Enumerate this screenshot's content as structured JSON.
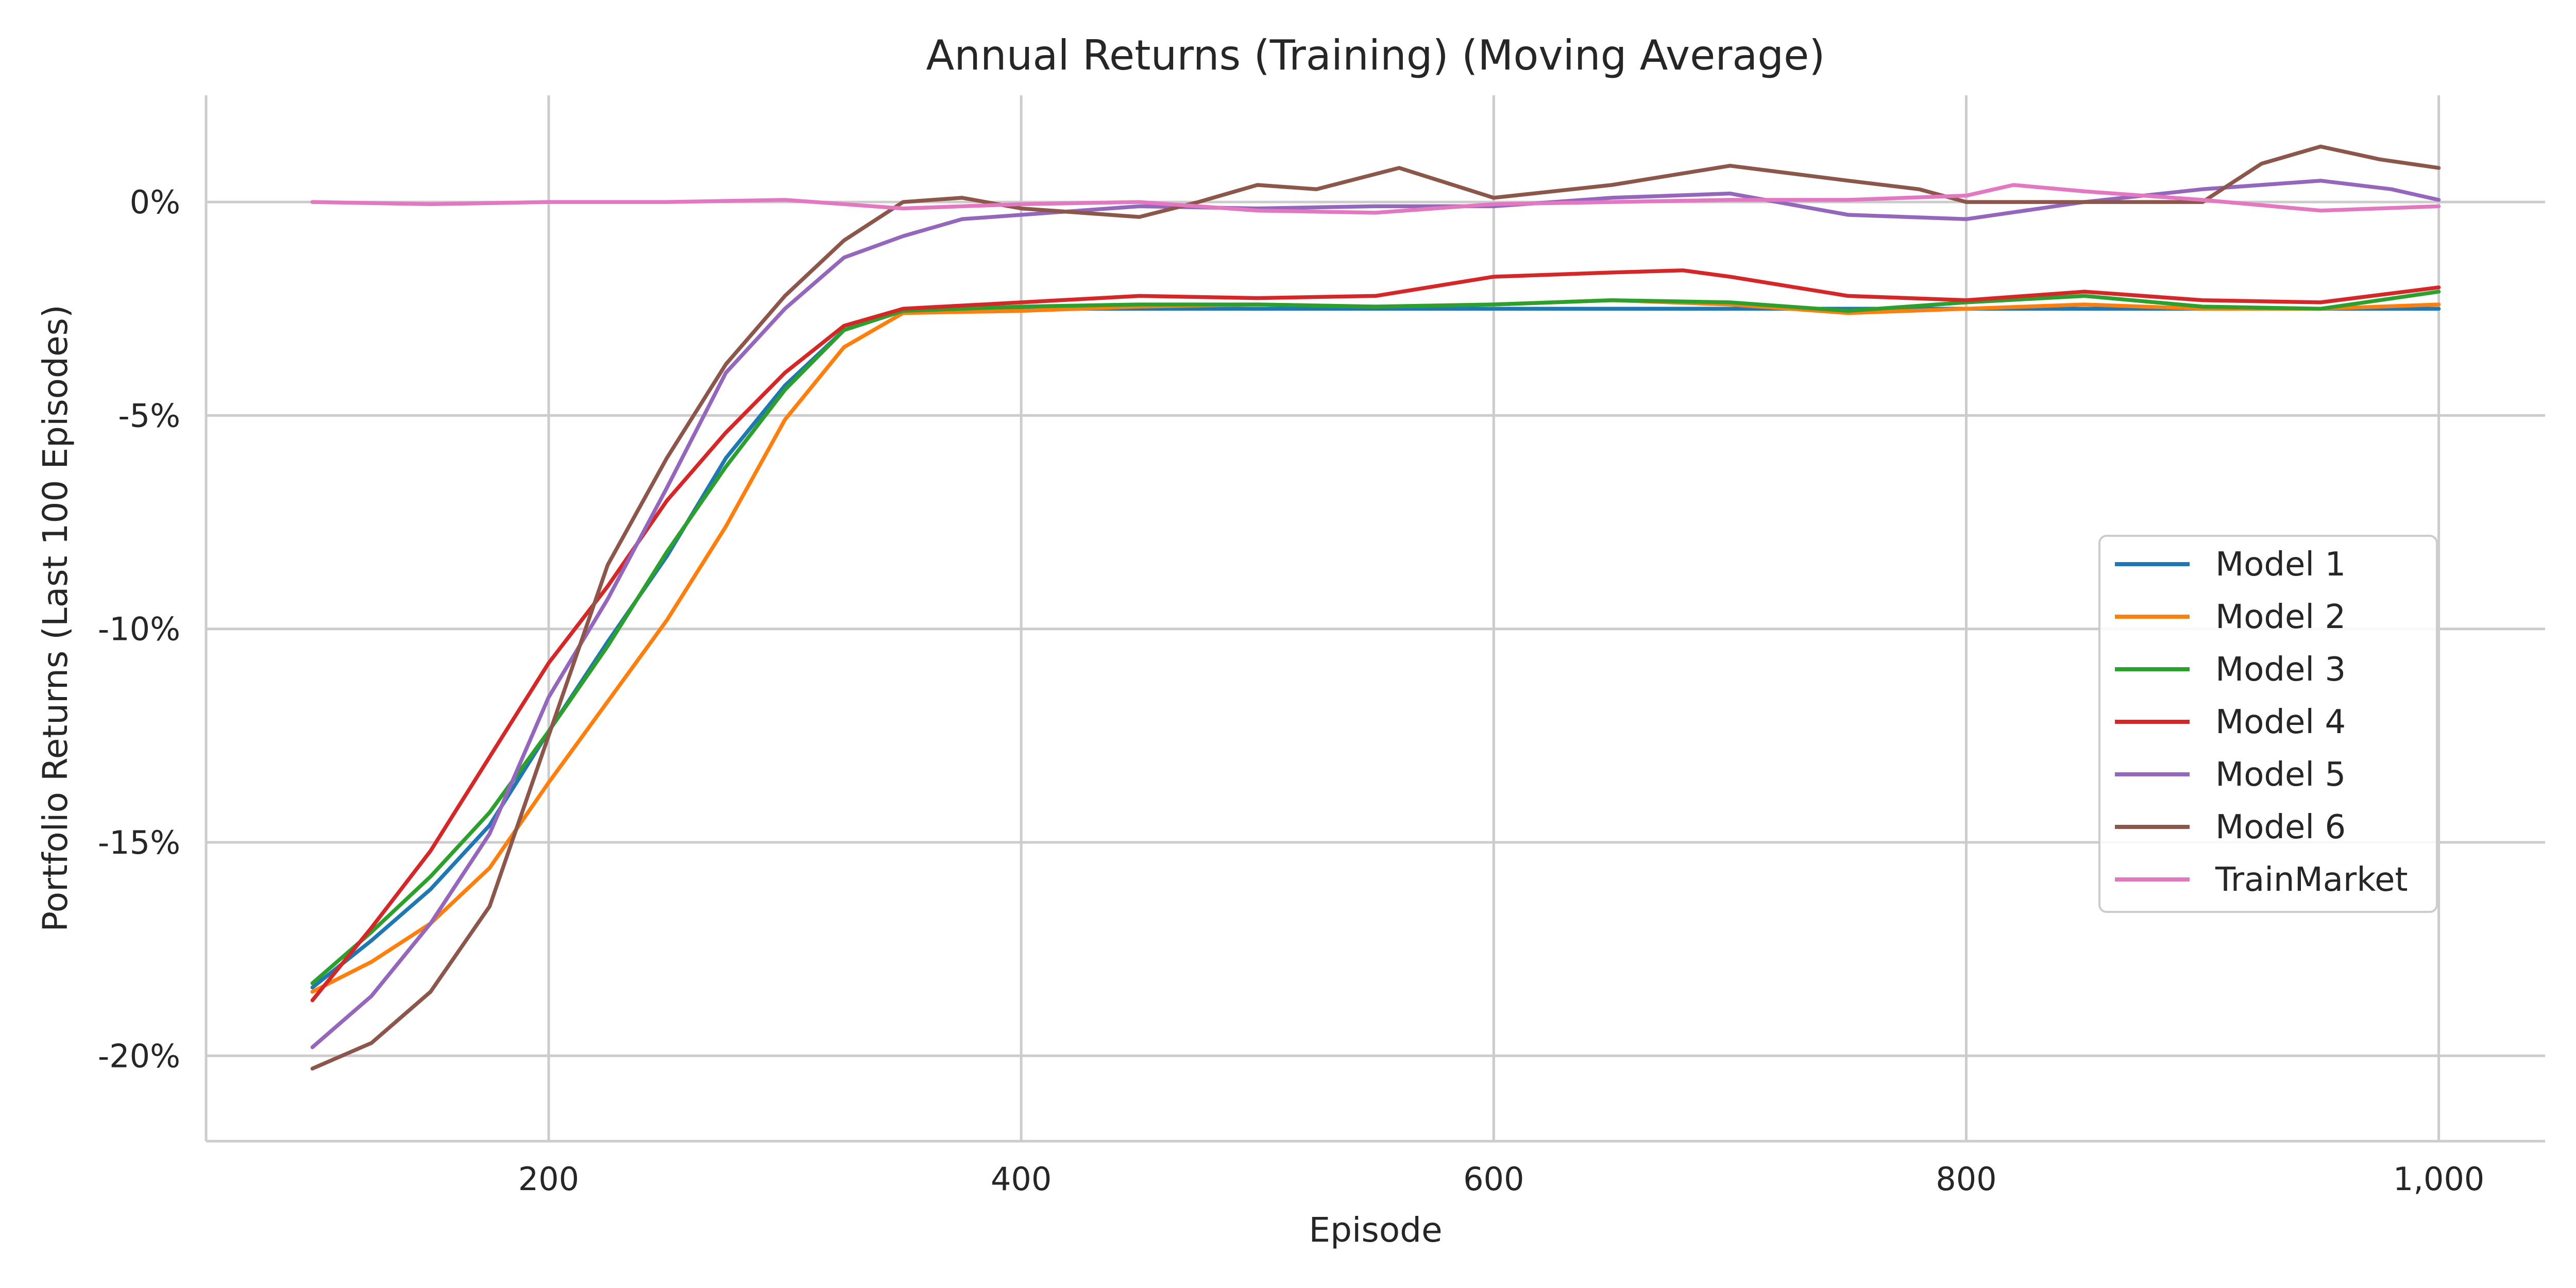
{
  "chart_data": {
    "type": "line",
    "title": "Annual Returns (Training) (Moving Average)",
    "xlabel": "Episode",
    "ylabel": "Portfolio Returns (Last 100 Episodes)",
    "xlim": [
      55,
      1045
    ],
    "ylim": [
      -22.0,
      2.5
    ],
    "x_ticks": [
      200,
      400,
      600,
      800,
      1000
    ],
    "x_tick_labels": [
      "200",
      "400",
      "600",
      "800",
      "1,000"
    ],
    "y_ticks": [
      0,
      -5,
      -10,
      -15,
      -20
    ],
    "y_tick_labels": [
      "0%",
      "-5%",
      "-10%",
      "-15%",
      "-20%"
    ],
    "grid": true,
    "legend_position": "center-right",
    "series": [
      {
        "name": "Model 1",
        "color": "#1f77b4",
        "points": [
          [
            100,
            -18.4
          ],
          [
            125,
            -17.3
          ],
          [
            150,
            -16.1
          ],
          [
            175,
            -14.6
          ],
          [
            200,
            -12.4
          ],
          [
            225,
            -10.3
          ],
          [
            250,
            -8.3
          ],
          [
            275,
            -6.0
          ],
          [
            300,
            -4.3
          ],
          [
            325,
            -3.0
          ],
          [
            350,
            -2.55
          ],
          [
            400,
            -2.5
          ],
          [
            500,
            -2.5
          ],
          [
            600,
            -2.5
          ],
          [
            700,
            -2.5
          ],
          [
            800,
            -2.5
          ],
          [
            900,
            -2.5
          ],
          [
            1000,
            -2.5
          ]
        ]
      },
      {
        "name": "Model 2",
        "color": "#ff7f0e",
        "points": [
          [
            100,
            -18.5
          ],
          [
            125,
            -17.8
          ],
          [
            150,
            -16.9
          ],
          [
            175,
            -15.6
          ],
          [
            200,
            -13.6
          ],
          [
            225,
            -11.7
          ],
          [
            250,
            -9.8
          ],
          [
            275,
            -7.6
          ],
          [
            300,
            -5.1
          ],
          [
            325,
            -3.4
          ],
          [
            350,
            -2.6
          ],
          [
            400,
            -2.55
          ],
          [
            450,
            -2.45
          ],
          [
            500,
            -2.4
          ],
          [
            550,
            -2.45
          ],
          [
            600,
            -2.4
          ],
          [
            650,
            -2.3
          ],
          [
            700,
            -2.4
          ],
          [
            750,
            -2.6
          ],
          [
            800,
            -2.5
          ],
          [
            850,
            -2.4
          ],
          [
            900,
            -2.5
          ],
          [
            950,
            -2.5
          ],
          [
            1000,
            -2.4
          ]
        ]
      },
      {
        "name": "Model 3",
        "color": "#2ca02c",
        "points": [
          [
            100,
            -18.3
          ],
          [
            125,
            -17.1
          ],
          [
            150,
            -15.8
          ],
          [
            175,
            -14.3
          ],
          [
            200,
            -12.4
          ],
          [
            225,
            -10.4
          ],
          [
            250,
            -8.2
          ],
          [
            275,
            -6.2
          ],
          [
            300,
            -4.4
          ],
          [
            325,
            -3.0
          ],
          [
            350,
            -2.55
          ],
          [
            400,
            -2.45
          ],
          [
            450,
            -2.4
          ],
          [
            500,
            -2.4
          ],
          [
            550,
            -2.45
          ],
          [
            600,
            -2.4
          ],
          [
            650,
            -2.3
          ],
          [
            700,
            -2.35
          ],
          [
            750,
            -2.55
          ],
          [
            800,
            -2.35
          ],
          [
            850,
            -2.2
          ],
          [
            900,
            -2.45
          ],
          [
            950,
            -2.5
          ],
          [
            1000,
            -2.1
          ]
        ]
      },
      {
        "name": "Model 4",
        "color": "#d62728",
        "points": [
          [
            100,
            -18.7
          ],
          [
            125,
            -17.0
          ],
          [
            150,
            -15.2
          ],
          [
            175,
            -13.0
          ],
          [
            200,
            -10.8
          ],
          [
            225,
            -9.0
          ],
          [
            250,
            -7.0
          ],
          [
            275,
            -5.4
          ],
          [
            300,
            -4.0
          ],
          [
            325,
            -2.9
          ],
          [
            350,
            -2.5
          ],
          [
            400,
            -2.35
          ],
          [
            450,
            -2.2
          ],
          [
            500,
            -2.25
          ],
          [
            550,
            -2.2
          ],
          [
            600,
            -1.75
          ],
          [
            650,
            -1.65
          ],
          [
            680,
            -1.6
          ],
          [
            700,
            -1.75
          ],
          [
            750,
            -2.2
          ],
          [
            800,
            -2.3
          ],
          [
            850,
            -2.1
          ],
          [
            900,
            -2.3
          ],
          [
            950,
            -2.35
          ],
          [
            1000,
            -2.0
          ]
        ]
      },
      {
        "name": "Model 5",
        "color": "#9467bd",
        "points": [
          [
            100,
            -19.8
          ],
          [
            125,
            -18.6
          ],
          [
            150,
            -16.9
          ],
          [
            175,
            -14.8
          ],
          [
            200,
            -11.6
          ],
          [
            225,
            -9.3
          ],
          [
            250,
            -6.7
          ],
          [
            275,
            -4.0
          ],
          [
            300,
            -2.5
          ],
          [
            325,
            -1.3
          ],
          [
            350,
            -0.8
          ],
          [
            375,
            -0.4
          ],
          [
            400,
            -0.3
          ],
          [
            450,
            -0.1
          ],
          [
            500,
            -0.15
          ],
          [
            550,
            -0.1
          ],
          [
            600,
            -0.1
          ],
          [
            650,
            0.1
          ],
          [
            700,
            0.2
          ],
          [
            750,
            -0.3
          ],
          [
            800,
            -0.4
          ],
          [
            850,
            0.0
          ],
          [
            900,
            0.3
          ],
          [
            950,
            0.5
          ],
          [
            980,
            0.3
          ],
          [
            1000,
            0.05
          ]
        ]
      },
      {
        "name": "Model 6",
        "color": "#8c564b",
        "points": [
          [
            100,
            -20.3
          ],
          [
            125,
            -19.7
          ],
          [
            150,
            -18.5
          ],
          [
            175,
            -16.5
          ],
          [
            200,
            -12.5
          ],
          [
            225,
            -8.5
          ],
          [
            250,
            -6.0
          ],
          [
            275,
            -3.8
          ],
          [
            300,
            -2.2
          ],
          [
            325,
            -0.9
          ],
          [
            350,
            0.0
          ],
          [
            375,
            0.1
          ],
          [
            400,
            -0.15
          ],
          [
            450,
            -0.35
          ],
          [
            475,
            0.0
          ],
          [
            500,
            0.4
          ],
          [
            525,
            0.3
          ],
          [
            560,
            0.8
          ],
          [
            600,
            0.1
          ],
          [
            650,
            0.4
          ],
          [
            700,
            0.85
          ],
          [
            750,
            0.5
          ],
          [
            780,
            0.3
          ],
          [
            800,
            0.0
          ],
          [
            850,
            0.0
          ],
          [
            900,
            0.0
          ],
          [
            925,
            0.9
          ],
          [
            950,
            1.3
          ],
          [
            975,
            1.0
          ],
          [
            1000,
            0.8
          ]
        ]
      },
      {
        "name": "TrainMarket",
        "color": "#e377c2",
        "points": [
          [
            100,
            0.0
          ],
          [
            150,
            -0.05
          ],
          [
            200,
            0.0
          ],
          [
            250,
            0.0
          ],
          [
            300,
            0.05
          ],
          [
            350,
            -0.15
          ],
          [
            400,
            -0.05
          ],
          [
            450,
            0.0
          ],
          [
            500,
            -0.2
          ],
          [
            550,
            -0.25
          ],
          [
            600,
            -0.05
          ],
          [
            650,
            0.0
          ],
          [
            700,
            0.05
          ],
          [
            750,
            0.05
          ],
          [
            800,
            0.15
          ],
          [
            820,
            0.4
          ],
          [
            850,
            0.25
          ],
          [
            900,
            0.05
          ],
          [
            950,
            -0.2
          ],
          [
            1000,
            -0.1
          ]
        ]
      }
    ]
  }
}
